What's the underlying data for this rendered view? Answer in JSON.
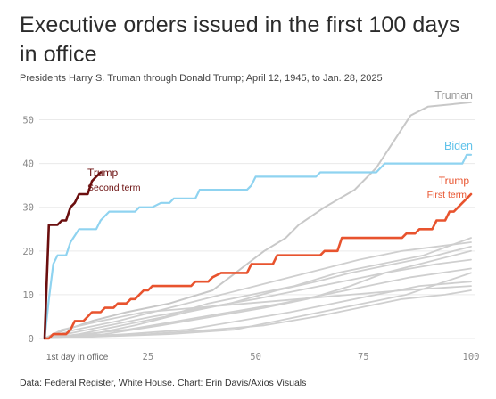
{
  "title": "Executive orders issued in the first 100 days in office",
  "subtitle": "Presidents Harry S. Truman through Donald Trump; April 12, 1945, to Jan. 28, 2025",
  "footer": {
    "prefix": "Data: ",
    "source1": "Federal Register",
    "sep": ", ",
    "source2": "White House",
    "suffix": ". Chart: Erin Davis/Axios Visuals"
  },
  "chart_data": {
    "type": "line",
    "xlim": [
      1,
      100
    ],
    "ylim": [
      0,
      55
    ],
    "x_ticks": [
      1,
      25,
      50,
      75,
      100
    ],
    "x_tick_labels": [
      "1st day in office",
      "25",
      "50",
      "75",
      "100"
    ],
    "y_ticks": [
      0,
      10,
      20,
      30,
      40,
      50
    ],
    "grid": true,
    "colors": {
      "trump_second": "#6b0f0f",
      "biden": "#8fd3f0",
      "trump_first": "#e8532e",
      "truman": "#c8c8c8",
      "others": "#cfcfcf"
    },
    "series": [
      {
        "key": "truman",
        "name": "Truman",
        "points": [
          [
            1,
            0
          ],
          [
            3,
            1
          ],
          [
            6,
            2
          ],
          [
            12,
            4
          ],
          [
            20,
            6
          ],
          [
            30,
            8
          ],
          [
            40,
            11
          ],
          [
            44,
            14
          ],
          [
            48,
            17
          ],
          [
            52,
            20
          ],
          [
            57,
            23
          ],
          [
            60,
            26
          ],
          [
            66,
            30
          ],
          [
            73,
            34
          ],
          [
            78,
            39
          ],
          [
            82,
            45
          ],
          [
            86,
            51
          ],
          [
            90,
            53
          ],
          [
            100,
            54
          ]
        ]
      },
      {
        "key": "others",
        "points": [
          [
            1,
            0
          ],
          [
            12,
            1
          ],
          [
            22,
            3
          ],
          [
            34,
            6
          ],
          [
            44,
            8
          ],
          [
            55,
            11
          ],
          [
            64,
            13
          ],
          [
            72,
            15
          ],
          [
            82,
            17
          ],
          [
            92,
            19
          ],
          [
            100,
            21
          ]
        ]
      },
      {
        "key": "others",
        "points": [
          [
            1,
            0
          ],
          [
            8,
            2
          ],
          [
            18,
            4
          ],
          [
            30,
            7
          ],
          [
            42,
            10
          ],
          [
            50,
            12
          ],
          [
            58,
            14
          ],
          [
            66,
            16
          ],
          [
            74,
            18
          ],
          [
            84,
            20
          ],
          [
            100,
            22
          ]
        ]
      },
      {
        "key": "others",
        "points": [
          [
            1,
            0
          ],
          [
            15,
            1
          ],
          [
            28,
            3
          ],
          [
            40,
            5
          ],
          [
            52,
            7
          ],
          [
            62,
            9
          ],
          [
            72,
            12
          ],
          [
            80,
            15
          ],
          [
            88,
            17
          ],
          [
            100,
            20
          ]
        ]
      },
      {
        "key": "others",
        "points": [
          [
            1,
            0
          ],
          [
            10,
            1
          ],
          [
            20,
            2
          ],
          [
            32,
            4
          ],
          [
            44,
            6
          ],
          [
            56,
            8
          ],
          [
            66,
            10
          ],
          [
            76,
            12
          ],
          [
            86,
            14
          ],
          [
            100,
            16
          ]
        ]
      },
      {
        "key": "others",
        "points": [
          [
            1,
            0
          ],
          [
            6,
            1
          ],
          [
            16,
            3
          ],
          [
            26,
            5
          ],
          [
            38,
            7
          ],
          [
            50,
            9
          ],
          [
            60,
            11
          ],
          [
            70,
            13
          ],
          [
            80,
            15
          ],
          [
            92,
            17
          ],
          [
            100,
            18
          ]
        ]
      },
      {
        "key": "others",
        "points": [
          [
            1,
            0
          ],
          [
            20,
            1
          ],
          [
            34,
            2
          ],
          [
            46,
            4
          ],
          [
            58,
            6
          ],
          [
            68,
            8
          ],
          [
            78,
            10
          ],
          [
            88,
            12
          ],
          [
            100,
            13
          ]
        ]
      },
      {
        "key": "others",
        "points": [
          [
            1,
            0
          ],
          [
            5,
            2
          ],
          [
            14,
            4
          ],
          [
            24,
            6
          ],
          [
            36,
            7
          ],
          [
            48,
            8
          ],
          [
            60,
            9
          ],
          [
            72,
            10
          ],
          [
            84,
            11
          ],
          [
            100,
            12
          ]
        ]
      },
      {
        "key": "others",
        "points": [
          [
            1,
            0
          ],
          [
            25,
            1
          ],
          [
            40,
            2
          ],
          [
            52,
            3
          ],
          [
            64,
            5
          ],
          [
            74,
            7
          ],
          [
            84,
            9
          ],
          [
            94,
            10
          ],
          [
            100,
            11
          ]
        ]
      },
      {
        "key": "others",
        "points": [
          [
            1,
            0
          ],
          [
            9,
            1
          ],
          [
            19,
            3
          ],
          [
            29,
            5
          ],
          [
            39,
            8
          ],
          [
            49,
            10
          ],
          [
            59,
            12
          ],
          [
            69,
            15
          ],
          [
            79,
            17
          ],
          [
            89,
            19
          ],
          [
            100,
            23
          ]
        ]
      },
      {
        "key": "others",
        "points": [
          [
            1,
            0
          ],
          [
            30,
            1
          ],
          [
            45,
            2
          ],
          [
            55,
            4
          ],
          [
            65,
            6
          ],
          [
            75,
            8
          ],
          [
            85,
            10
          ],
          [
            100,
            15
          ]
        ]
      },
      {
        "key": "biden",
        "name": "Biden",
        "points": [
          [
            1,
            0
          ],
          [
            2,
            9
          ],
          [
            3,
            17
          ],
          [
            4,
            19
          ],
          [
            6,
            19
          ],
          [
            7,
            22
          ],
          [
            9,
            25
          ],
          [
            13,
            25
          ],
          [
            14,
            27
          ],
          [
            15,
            28
          ],
          [
            16,
            29
          ],
          [
            22,
            29
          ],
          [
            23,
            30
          ],
          [
            26,
            30
          ],
          [
            28,
            31
          ],
          [
            29,
            31
          ],
          [
            30,
            31
          ],
          [
            31,
            32
          ],
          [
            36,
            32
          ],
          [
            37,
            34
          ],
          [
            48,
            34
          ],
          [
            49,
            35
          ],
          [
            50,
            37
          ],
          [
            64,
            37
          ],
          [
            65,
            38
          ],
          [
            78,
            38
          ],
          [
            79,
            39
          ],
          [
            80,
            40
          ],
          [
            98,
            40
          ],
          [
            99,
            42
          ],
          [
            100,
            42
          ]
        ]
      },
      {
        "key": "trump_first",
        "name": "Trump",
        "points": [
          [
            1,
            0
          ],
          [
            2,
            0
          ],
          [
            3,
            1
          ],
          [
            6,
            1
          ],
          [
            7,
            2
          ],
          [
            8,
            4
          ],
          [
            10,
            4
          ],
          [
            11,
            5
          ],
          [
            12,
            6
          ],
          [
            14,
            6
          ],
          [
            15,
            7
          ],
          [
            17,
            7
          ],
          [
            18,
            8
          ],
          [
            20,
            8
          ],
          [
            21,
            9
          ],
          [
            22,
            9
          ],
          [
            23,
            10
          ],
          [
            24,
            11
          ],
          [
            25,
            11
          ],
          [
            26,
            12
          ],
          [
            35,
            12
          ],
          [
            36,
            13
          ],
          [
            39,
            13
          ],
          [
            40,
            14
          ],
          [
            42,
            15
          ],
          [
            48,
            15
          ],
          [
            49,
            17
          ],
          [
            54,
            17
          ],
          [
            55,
            19
          ],
          [
            65,
            19
          ],
          [
            66,
            20
          ],
          [
            69,
            20
          ],
          [
            70,
            23
          ],
          [
            84,
            23
          ],
          [
            85,
            24
          ],
          [
            87,
            24
          ],
          [
            88,
            25
          ],
          [
            91,
            25
          ],
          [
            92,
            27
          ],
          [
            94,
            27
          ],
          [
            95,
            29
          ],
          [
            96,
            29
          ],
          [
            97,
            30
          ],
          [
            98,
            31
          ],
          [
            99,
            32
          ],
          [
            100,
            33
          ]
        ]
      },
      {
        "key": "trump_second",
        "name": "Trump",
        "points": [
          [
            1,
            0
          ],
          [
            2,
            26
          ],
          [
            4,
            26
          ],
          [
            5,
            27
          ],
          [
            6,
            27
          ],
          [
            7,
            30
          ],
          [
            8,
            31
          ],
          [
            9,
            33
          ],
          [
            11,
            33
          ],
          [
            12,
            36
          ],
          [
            13,
            37
          ],
          [
            14,
            38
          ]
        ]
      }
    ],
    "labels": {
      "truman": "Truman",
      "biden": "Biden",
      "trump_first": "Trump",
      "trump_first_sub": "First term",
      "trump_second": "Trump",
      "trump_second_sub": "Second term"
    }
  }
}
